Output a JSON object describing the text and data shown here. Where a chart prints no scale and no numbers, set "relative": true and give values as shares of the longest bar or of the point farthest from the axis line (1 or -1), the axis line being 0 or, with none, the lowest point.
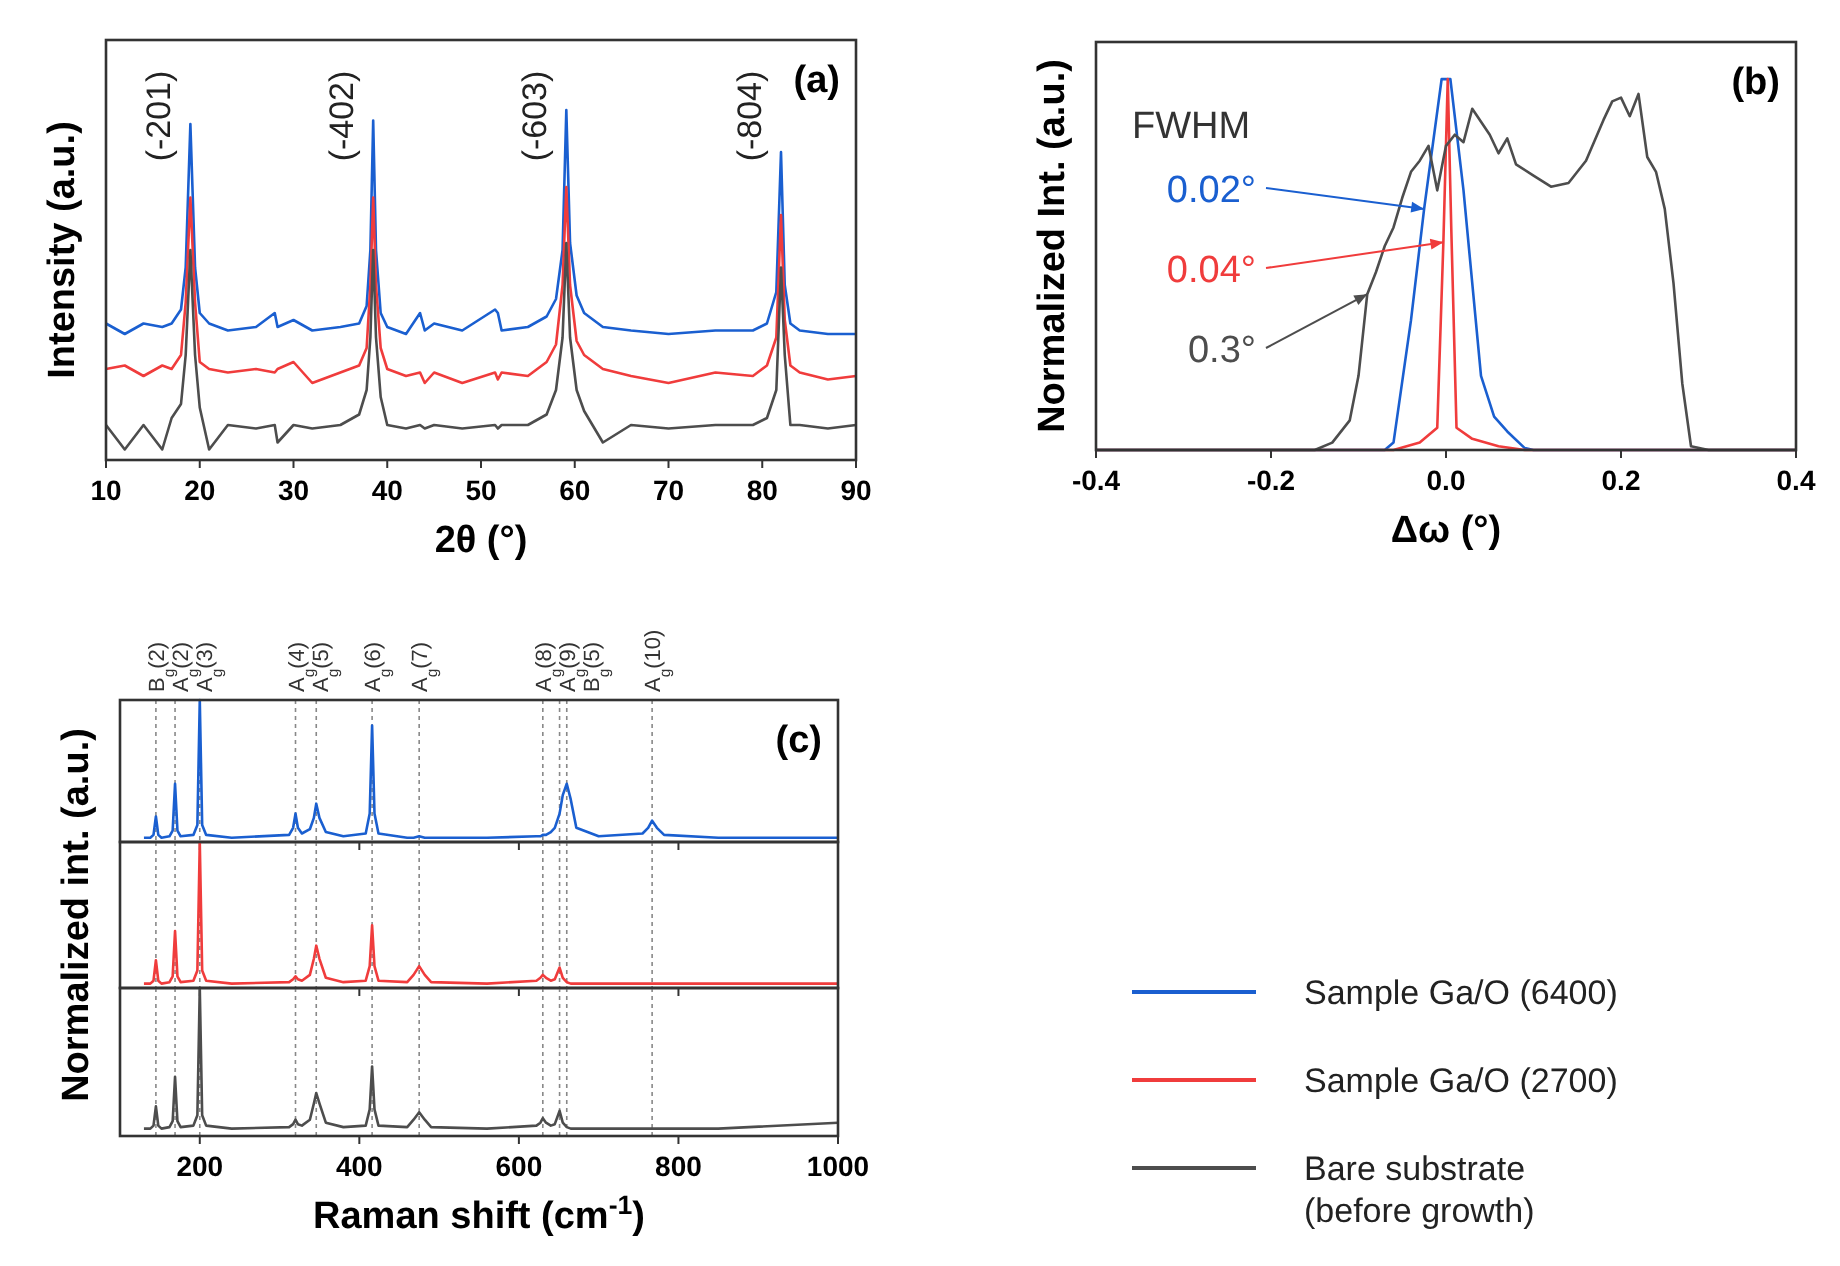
{
  "chart_data": [
    {
      "type": "line",
      "title": "(a)",
      "xlabel": "2θ (°)",
      "ylabel": "Intensity (a.u.)",
      "relative": true,
      "xlim": [
        10,
        90
      ],
      "xticks": [
        10,
        20,
        30,
        40,
        50,
        60,
        70,
        80,
        90
      ],
      "x": [
        10,
        12,
        14,
        16,
        17,
        18,
        18.5,
        19,
        19.5,
        20,
        21,
        23,
        26,
        28,
        28.3,
        30,
        32,
        35,
        37,
        37.8,
        38.2,
        38.5,
        38.8,
        39.3,
        40,
        42,
        43.5,
        44,
        45,
        48,
        51.5,
        51.8,
        52.2,
        55,
        57,
        58,
        58.7,
        59.1,
        59.5,
        60.2,
        61,
        63,
        66,
        70,
        75,
        79,
        80.5,
        81.5,
        82,
        82.4,
        83,
        84,
        87,
        90
      ],
      "series": [
        {
          "color": "#1a5fd0",
          "values": [
            0.39,
            0.36,
            0.39,
            0.38,
            0.39,
            0.43,
            0.55,
            0.96,
            0.55,
            0.42,
            0.39,
            0.37,
            0.38,
            0.42,
            0.38,
            0.4,
            0.37,
            0.38,
            0.39,
            0.44,
            0.6,
            0.97,
            0.6,
            0.42,
            0.38,
            0.36,
            0.42,
            0.37,
            0.39,
            0.37,
            0.43,
            0.42,
            0.37,
            0.38,
            0.41,
            0.46,
            0.6,
            1,
            0.62,
            0.47,
            0.42,
            0.38,
            0.37,
            0.36,
            0.37,
            0.37,
            0.39,
            0.48,
            0.88,
            0.5,
            0.39,
            0.37,
            0.36,
            0.36
          ]
        },
        {
          "color": "#f03c3c",
          "values": [
            0.26,
            0.27,
            0.24,
            0.27,
            0.26,
            0.3,
            0.45,
            0.75,
            0.45,
            0.28,
            0.26,
            0.25,
            0.26,
            0.25,
            0.26,
            0.28,
            0.22,
            0.25,
            0.27,
            0.32,
            0.5,
            0.75,
            0.5,
            0.32,
            0.26,
            0.24,
            0.25,
            0.22,
            0.25,
            0.22,
            0.25,
            0.23,
            0.25,
            0.24,
            0.28,
            0.33,
            0.5,
            0.78,
            0.5,
            0.34,
            0.3,
            0.26,
            0.24,
            0.22,
            0.25,
            0.24,
            0.27,
            0.35,
            0.7,
            0.4,
            0.27,
            0.25,
            0.23,
            0.24
          ]
        },
        {
          "color": "#4d4d4d",
          "values": [
            0.1,
            0.03,
            0.1,
            0.03,
            0.12,
            0.16,
            0.3,
            0.6,
            0.3,
            0.15,
            0.03,
            0.1,
            0.09,
            0.1,
            0.05,
            0.1,
            0.09,
            0.1,
            0.13,
            0.2,
            0.35,
            0.6,
            0.35,
            0.18,
            0.1,
            0.09,
            0.1,
            0.09,
            0.1,
            0.09,
            0.1,
            0.09,
            0.1,
            0.1,
            0.13,
            0.2,
            0.35,
            0.62,
            0.35,
            0.2,
            0.14,
            0.05,
            0.1,
            0.09,
            0.1,
            0.1,
            0.12,
            0.2,
            0.55,
            0.3,
            0.1,
            0.1,
            0.09,
            0.1
          ]
        }
      ],
      "annotations": [
        "(-201)",
        "(-402)",
        "(-603)",
        "(-804)"
      ]
    },
    {
      "type": "line",
      "title": "(b)",
      "xlabel": "Δω (°)",
      "ylabel": "Normalized Int. (a.u.)",
      "relative": true,
      "xlim": [
        -0.4,
        0.4
      ],
      "xticks": [
        -0.4,
        -0.2,
        {
          "value": 0,
          "label": "0.0"
        },
        0.2,
        0.4
      ],
      "series": [
        {
          "color": "#1a5fd0",
          "x": [
            -0.4,
            -0.07,
            -0.06,
            -0.04,
            -0.025,
            -0.005,
            0.005,
            0.02,
            0.04,
            0.055,
            0.07,
            0.09,
            0.1,
            0.4
          ],
          "values": [
            0,
            0,
            0.02,
            0.35,
            0.65,
            1,
            1,
            0.7,
            0.2,
            0.09,
            0.05,
            0.005,
            0,
            0
          ]
        },
        {
          "color": "#f03c3c",
          "x": [
            -0.4,
            -0.06,
            -0.03,
            -0.01,
            -0.003,
            0.002,
            0.006,
            0.012,
            0.03,
            0.06,
            0.09,
            0.4
          ],
          "values": [
            0,
            0,
            0.02,
            0.06,
            0.56,
            1,
            0.6,
            0.06,
            0.03,
            0.01,
            0,
            0
          ]
        },
        {
          "color": "#4d4d4d",
          "x": [
            -0.4,
            -0.15,
            -0.13,
            -0.11,
            -0.1,
            -0.09,
            -0.08,
            -0.07,
            -0.06,
            -0.05,
            -0.04,
            -0.03,
            -0.02,
            -0.01,
            0,
            0.01,
            0.02,
            0.03,
            0.05,
            0.06,
            0.07,
            0.08,
            0.1,
            0.12,
            0.14,
            0.16,
            0.18,
            0.19,
            0.2,
            0.21,
            0.22,
            0.23,
            0.24,
            0.25,
            0.26,
            0.27,
            0.28,
            0.3,
            0.4
          ],
          "values": [
            0,
            0,
            0.02,
            0.08,
            0.2,
            0.42,
            0.48,
            0.55,
            0.6,
            0.68,
            0.75,
            0.78,
            0.82,
            0.7,
            0.82,
            0.85,
            0.83,
            0.92,
            0.85,
            0.8,
            0.84,
            0.77,
            0.74,
            0.71,
            0.72,
            0.78,
            0.89,
            0.94,
            0.95,
            0.9,
            0.96,
            0.79,
            0.75,
            0.65,
            0.45,
            0.18,
            0.01,
            0,
            0
          ]
        }
      ],
      "annotations": [
        "FWHM",
        {
          "text": "0.02°",
          "x": -0.025,
          "y": 0.65
        },
        {
          "text": "0.04°",
          "x": -0.003,
          "y": 0.56
        },
        {
          "text": "0.3°",
          "x": -0.09,
          "y": 0.42
        }
      ]
    },
    {
      "type": "line",
      "title": "(c)",
      "relative": true,
      "xlim": [
        100,
        1000
      ],
      "xticks": [
        200,
        400,
        600,
        800,
        1000
      ],
      "tick_labels": false,
      "legend": "right",
      "x": [
        130,
        138,
        142,
        145,
        148,
        152,
        162,
        166,
        169,
        172,
        176,
        192,
        197,
        200,
        203,
        208,
        240,
        312,
        317,
        320,
        323,
        328,
        338,
        343,
        346,
        350,
        358,
        380,
        408,
        413,
        416,
        419,
        424,
        460,
        468,
        475,
        482,
        490,
        560,
        622,
        627,
        630,
        634,
        640,
        645,
        651,
        655,
        660,
        665,
        672,
        700,
        755,
        762,
        767,
        773,
        782,
        850,
        1000
      ],
      "series": [
        {
          "name": "Sample Ga/O (6400)",
          "color": "#1a5fd0",
          "values": [
            0.03,
            0.03,
            0.05,
            0.18,
            0.05,
            0.03,
            0.04,
            0.08,
            0.41,
            0.08,
            0.04,
            0.05,
            0.12,
            1,
            0.12,
            0.05,
            0.03,
            0.05,
            0.1,
            0.2,
            0.1,
            0.06,
            0.09,
            0.17,
            0.27,
            0.17,
            0.07,
            0.04,
            0.06,
            0.2,
            0.82,
            0.2,
            0.06,
            0.03,
            0.03,
            0.04,
            0.03,
            0.03,
            0.03,
            0.04,
            0.04,
            0.05,
            0.05,
            0.07,
            0.1,
            0.2,
            0.33,
            0.41,
            0.3,
            0.1,
            0.04,
            0.06,
            0.1,
            0.15,
            0.1,
            0.05,
            0.03,
            0.03
          ]
        }
      ],
      "ref_lines": [
        {
          "axis": "x",
          "value": 145,
          "label": "B$_{g}$(2)"
        },
        {
          "axis": "x",
          "value": 169,
          "label": "A$_{g}$(2)"
        },
        {
          "axis": "x",
          "value": 200,
          "label": "A$_{g}$(3)"
        },
        {
          "axis": "x",
          "value": 320,
          "label": "A$_{g}$(4)"
        },
        {
          "axis": "x",
          "value": 346,
          "label": "A$_{g}$(5)"
        },
        {
          "axis": "x",
          "value": 416,
          "label": "A$_{g}$(6)"
        },
        {
          "axis": "x",
          "value": 475,
          "label": "A$_{g}$(7)"
        },
        {
          "axis": "x",
          "value": 630,
          "label": "A$_{g}$(8)"
        },
        {
          "axis": "x",
          "value": 651,
          "label": "A$_{g}$(9)"
        },
        {
          "axis": "x",
          "value": 660,
          "label": "B$_{g}$(5)"
        },
        {
          "axis": "x",
          "value": 767,
          "label": "A$_{g}$(10)"
        }
      ]
    },
    {
      "type": "line",
      "ylabel": "Normalized int. (a.u.)",
      "relative": true,
      "xlim": [
        100,
        1000
      ],
      "xticks": [
        200,
        400,
        600,
        800,
        1000
      ],
      "tick_labels": false,
      "legend": "right",
      "x": [
        130,
        138,
        142,
        145,
        148,
        152,
        162,
        166,
        169,
        172,
        176,
        192,
        197,
        200,
        203,
        208,
        240,
        312,
        317,
        320,
        323,
        328,
        338,
        343,
        346,
        350,
        358,
        380,
        408,
        413,
        416,
        419,
        424,
        460,
        468,
        475,
        482,
        490,
        560,
        622,
        627,
        630,
        634,
        640,
        645,
        651,
        655,
        660,
        665,
        672,
        700,
        755,
        762,
        767,
        773,
        782,
        850,
        1000
      ],
      "series": [
        {
          "name": "Sample Ga/O (2700)",
          "color": "#f03c3c",
          "values": [
            0.03,
            0.03,
            0.05,
            0.19,
            0.05,
            0.03,
            0.04,
            0.08,
            0.39,
            0.08,
            0.04,
            0.05,
            0.12,
            1,
            0.12,
            0.05,
            0.03,
            0.04,
            0.06,
            0.08,
            0.06,
            0.05,
            0.09,
            0.2,
            0.29,
            0.2,
            0.07,
            0.04,
            0.05,
            0.15,
            0.43,
            0.15,
            0.05,
            0.04,
            0.09,
            0.15,
            0.09,
            0.04,
            0.03,
            0.05,
            0.07,
            0.09,
            0.07,
            0.05,
            0.06,
            0.14,
            0.07,
            0.04,
            0.03,
            0.03,
            0.03,
            0.03,
            0.03,
            0.03,
            0.03,
            0.03,
            0.03,
            0.03
          ]
        }
      ],
      "ref_lines": [
        {
          "axis": "x",
          "value": 145
        },
        {
          "axis": "x",
          "value": 169
        },
        {
          "axis": "x",
          "value": 200
        },
        {
          "axis": "x",
          "value": 320
        },
        {
          "axis": "x",
          "value": 346
        },
        {
          "axis": "x",
          "value": 416
        },
        {
          "axis": "x",
          "value": 475
        },
        {
          "axis": "x",
          "value": 630
        },
        {
          "axis": "x",
          "value": 651
        },
        {
          "axis": "x",
          "value": 660
        },
        {
          "axis": "x",
          "value": 767
        }
      ]
    },
    {
      "type": "line",
      "xlabel": "Raman shift (cm$^{-1}$)",
      "relative": true,
      "xlim": [
        100,
        1000
      ],
      "xticks": [
        200,
        400,
        600,
        800,
        1000
      ],
      "legend": "right",
      "x": [
        130,
        138,
        142,
        145,
        148,
        152,
        162,
        166,
        169,
        172,
        176,
        192,
        197,
        200,
        203,
        208,
        240,
        312,
        317,
        320,
        323,
        328,
        338,
        343,
        346,
        350,
        358,
        380,
        408,
        413,
        416,
        419,
        424,
        460,
        468,
        475,
        482,
        490,
        560,
        622,
        627,
        630,
        634,
        640,
        645,
        651,
        655,
        660,
        665,
        672,
        700,
        755,
        762,
        767,
        773,
        782,
        850,
        1000
      ],
      "series": [
        {
          "name": "Bare substrate (before growth)",
          "color": "#4d4d4d",
          "values": [
            0.05,
            0.05,
            0.07,
            0.2,
            0.07,
            0.05,
            0.06,
            0.1,
            0.4,
            0.1,
            0.06,
            0.07,
            0.14,
            1,
            0.14,
            0.07,
            0.05,
            0.06,
            0.08,
            0.11,
            0.08,
            0.07,
            0.11,
            0.22,
            0.29,
            0.22,
            0.09,
            0.06,
            0.07,
            0.18,
            0.47,
            0.18,
            0.07,
            0.06,
            0.11,
            0.16,
            0.11,
            0.06,
            0.05,
            0.07,
            0.09,
            0.12,
            0.09,
            0.07,
            0.08,
            0.17,
            0.09,
            0.06,
            0.05,
            0.05,
            0.05,
            0.05,
            0.05,
            0.05,
            0.05,
            0.05,
            0.05,
            0.09
          ]
        }
      ],
      "ref_lines": [
        {
          "axis": "x",
          "value": 145
        },
        {
          "axis": "x",
          "value": 169
        },
        {
          "axis": "x",
          "value": 200
        },
        {
          "axis": "x",
          "value": 320
        },
        {
          "axis": "x",
          "value": 346
        },
        {
          "axis": "x",
          "value": 416
        },
        {
          "axis": "x",
          "value": 475
        },
        {
          "axis": "x",
          "value": 630
        },
        {
          "axis": "x",
          "value": 651
        },
        {
          "axis": "x",
          "value": 660
        },
        {
          "axis": "x",
          "value": 767
        }
      ]
    }
  ]
}
